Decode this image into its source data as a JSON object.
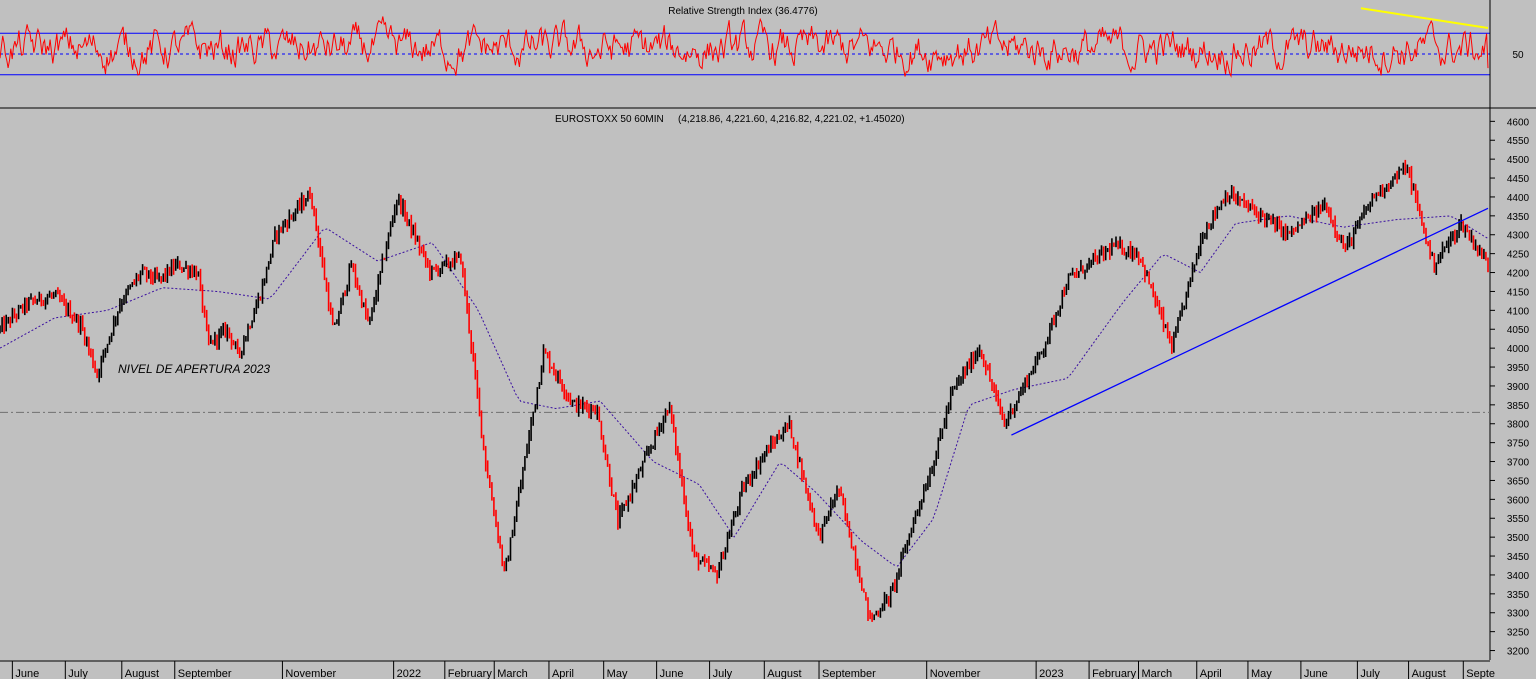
{
  "colors": {
    "background": "#c0c0c0",
    "rsi_line": "#ff0000",
    "rsi_bands": "#0000ff",
    "rsi_trend": "#ffff00",
    "price_up": "#000000",
    "price_down": "#ff0000",
    "moving_average": "#3a0fa0",
    "trendline": "#0000ff",
    "reference_line": "#707070",
    "axis_text": "#000000"
  },
  "rsi_panel": {
    "title": "Relative Strength Index (36.4776)",
    "current_value": 36.4776,
    "upper_band": 70,
    "mid_level": 50,
    "lower_band": 30,
    "ylim": [
      0,
      100
    ],
    "tick_labels": [
      "50"
    ],
    "trend_line_from": {
      "date": "2023-07-05",
      "value": 94
    },
    "trend_line_to": {
      "date": "2023-09-15",
      "value": 75
    },
    "grid": false
  },
  "price_panel": {
    "title": "EUROSTOXX 50 60MIN",
    "ohlc_readout": "(4,218.86, 4,221.60, 4,216.82, 4,221.02, +1.45020)",
    "reference_label": "NIVEL DE APERTURA 2023",
    "reference_level": 3830,
    "y_ticks": [
      "4600",
      "4550",
      "4500",
      "4450",
      "4400",
      "4350",
      "4300",
      "4250",
      "4200",
      "4150",
      "4100",
      "4050",
      "4000",
      "3950",
      "3900",
      "3850",
      "3800",
      "3750",
      "3700",
      "3650",
      "3600",
      "3550",
      "3500",
      "3450",
      "3400",
      "3350",
      "3300",
      "3250",
      "3200"
    ],
    "trendline_from": {
      "date": "2022-12-19",
      "value": 3770
    },
    "trendline_to": {
      "date": "2023-09-15",
      "value": 4370
    }
  },
  "x_axis": {
    "labels": [
      "June",
      "July",
      "August",
      "September",
      "November",
      "2022",
      "February",
      "March",
      "April",
      "May",
      "June",
      "July",
      "August",
      "September",
      "November",
      "2023",
      "February",
      "March",
      "April",
      "May",
      "June",
      "July",
      "August",
      "Septe"
    ],
    "label_dates": [
      "2021-06-01",
      "2021-07-01",
      "2021-08-02",
      "2021-09-01",
      "2021-11-01",
      "2022-01-03",
      "2022-02-01",
      "2022-03-01",
      "2022-04-01",
      "2022-05-02",
      "2022-06-01",
      "2022-07-01",
      "2022-08-01",
      "2022-09-01",
      "2022-11-01",
      "2023-01-02",
      "2023-02-01",
      "2023-03-01",
      "2023-04-03",
      "2023-05-02",
      "2023-06-01",
      "2023-07-03",
      "2023-08-01",
      "2023-09-01"
    ]
  },
  "chart_data": {
    "type": "line",
    "title": "EUROSTOXX 50 60MIN",
    "xlabel": "",
    "ylabel": "",
    "ylim": [
      3175,
      4630
    ],
    "xlim": [
      "2021-05-25",
      "2023-09-15"
    ],
    "series": [
      {
        "values": [
          [
            "2021-05-25",
            4050
          ],
          [
            "2021-06-10",
            4120
          ],
          [
            "2021-06-25",
            4140
          ],
          [
            "2021-07-10",
            4060
          ],
          [
            "2021-07-19",
            3930
          ],
          [
            "2021-08-01",
            4120
          ],
          [
            "2021-08-13",
            4200
          ],
          [
            "2021-08-23",
            4180
          ],
          [
            "2021-09-02",
            4220
          ],
          [
            "2021-09-14",
            4200
          ],
          [
            "2021-09-20",
            4010
          ],
          [
            "2021-10-01",
            4050
          ],
          [
            "2021-10-07",
            3980
          ],
          [
            "2021-10-20",
            4150
          ],
          [
            "2021-10-28",
            4300
          ],
          [
            "2021-11-17",
            4410
          ],
          [
            "2021-11-30",
            4040
          ],
          [
            "2021-12-10",
            4220
          ],
          [
            "2021-12-20",
            4060
          ],
          [
            "2022-01-05",
            4400
          ],
          [
            "2022-01-24",
            4200
          ],
          [
            "2022-02-10",
            4240
          ],
          [
            "2022-02-24",
            3700
          ],
          [
            "2022-03-07",
            3400
          ],
          [
            "2022-03-29",
            3990
          ],
          [
            "2022-04-15",
            3850
          ],
          [
            "2022-04-28",
            3840
          ],
          [
            "2022-05-10",
            3540
          ],
          [
            "2022-05-25",
            3700
          ],
          [
            "2022-06-08",
            3850
          ],
          [
            "2022-06-22",
            3450
          ],
          [
            "2022-07-05",
            3400
          ],
          [
            "2022-07-20",
            3630
          ],
          [
            "2022-08-01",
            3720
          ],
          [
            "2022-08-15",
            3800
          ],
          [
            "2022-09-01",
            3500
          ],
          [
            "2022-09-12",
            3630
          ],
          [
            "2022-09-30",
            3280
          ],
          [
            "2022-10-12",
            3350
          ],
          [
            "2022-10-25",
            3550
          ],
          [
            "2022-11-05",
            3700
          ],
          [
            "2022-11-15",
            3880
          ],
          [
            "2022-12-01",
            4000
          ],
          [
            "2022-12-15",
            3800
          ],
          [
            "2023-01-06",
            4000
          ],
          [
            "2023-01-20",
            4180
          ],
          [
            "2023-02-15",
            4270
          ],
          [
            "2023-03-01",
            4250
          ],
          [
            "2023-03-20",
            4000
          ],
          [
            "2023-04-06",
            4300
          ],
          [
            "2023-04-20",
            4410
          ],
          [
            "2023-05-10",
            4350
          ],
          [
            "2023-05-25",
            4300
          ],
          [
            "2023-06-15",
            4380
          ],
          [
            "2023-06-26",
            4260
          ],
          [
            "2023-07-12",
            4400
          ],
          [
            "2023-07-31",
            4480
          ],
          [
            "2023-08-15",
            4220
          ],
          [
            "2023-08-31",
            4330
          ],
          [
            "2023-09-15",
            4221
          ]
        ]
      },
      {
        "values": [
          [
            "2021-05-25",
            4000
          ],
          [
            "2021-06-25",
            4080
          ],
          [
            "2021-07-25",
            4100
          ],
          [
            "2021-08-25",
            4160
          ],
          [
            "2021-09-25",
            4150
          ],
          [
            "2021-10-25",
            4130
          ],
          [
            "2021-11-25",
            4320
          ],
          [
            "2021-12-25",
            4230
          ],
          [
            "2022-01-25",
            4280
          ],
          [
            "2022-02-20",
            4100
          ],
          [
            "2022-03-15",
            3860
          ],
          [
            "2022-04-05",
            3840
          ],
          [
            "2022-04-30",
            3860
          ],
          [
            "2022-05-30",
            3700
          ],
          [
            "2022-06-25",
            3640
          ],
          [
            "2022-07-15",
            3500
          ],
          [
            "2022-08-10",
            3700
          ],
          [
            "2022-08-30",
            3620
          ],
          [
            "2022-09-25",
            3490
          ],
          [
            "2022-10-15",
            3420
          ],
          [
            "2022-11-05",
            3550
          ],
          [
            "2022-11-25",
            3850
          ],
          [
            "2022-12-20",
            3890
          ],
          [
            "2023-01-20",
            3920
          ],
          [
            "2023-02-20",
            4120
          ],
          [
            "2023-03-15",
            4250
          ],
          [
            "2023-04-05",
            4200
          ],
          [
            "2023-04-25",
            4330
          ],
          [
            "2023-05-25",
            4350
          ],
          [
            "2023-06-25",
            4320
          ],
          [
            "2023-07-25",
            4340
          ],
          [
            "2023-08-25",
            4350
          ],
          [
            "2023-09-15",
            4290
          ]
        ]
      }
    ]
  }
}
